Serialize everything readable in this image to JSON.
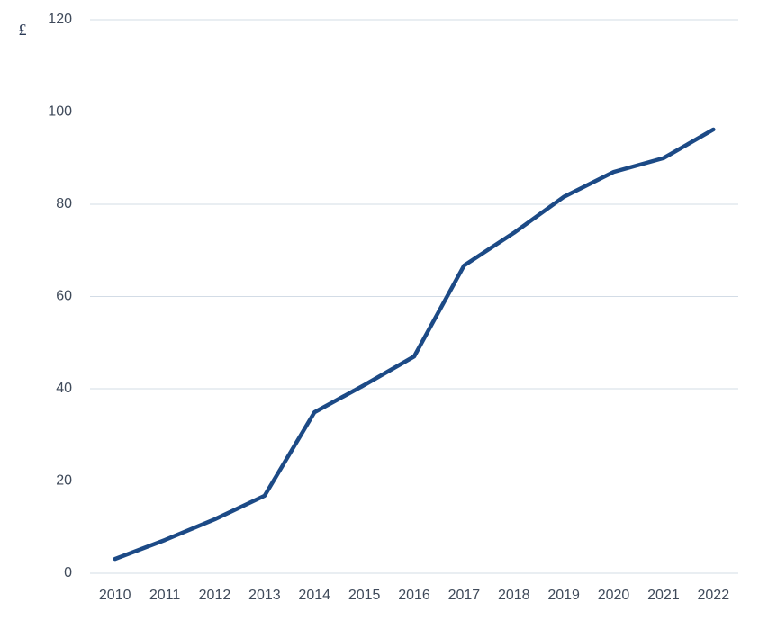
{
  "chart_data": {
    "type": "line",
    "y_label": "£",
    "categories": [
      "2010",
      "2011",
      "2012",
      "2013",
      "2014",
      "2015",
      "2016",
      "2017",
      "2018",
      "2019",
      "2020",
      "2021",
      "2022"
    ],
    "series": [
      {
        "color": "#1c4a86",
        "values": [
          3.1,
          7.2,
          11.7,
          16.8,
          34.9,
          40.8,
          47,
          66.7,
          73.8,
          81.6,
          87,
          90,
          96.2
        ]
      }
    ],
    "ylim": [
      0,
      120
    ],
    "yticks": [
      0,
      20,
      40,
      60,
      80,
      100,
      120
    ],
    "grid": true
  }
}
